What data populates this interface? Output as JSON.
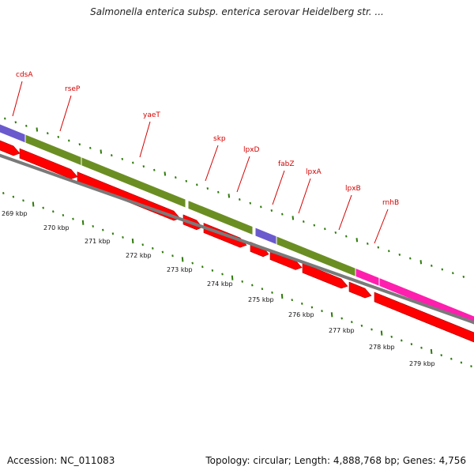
{
  "title": "Salmonella enterica subsp. enterica serovar Heidelberg str. ...",
  "footer": {
    "accession": "Accession: NC_011083",
    "summary": "Topology: circular; Length: 4,888,768 bp; Genes: 4,756"
  },
  "colors": {
    "gene_label": "#d40000",
    "cds_arrow": "#ff0000",
    "backbone": "#7a7a7a",
    "tick": "#2f7a0b",
    "cog_green": "#6b8e23",
    "cog_purple": "#6a5acd",
    "cog_magenta": "#ff1fae",
    "kbp_label": "#111111"
  },
  "gene_labels": [
    "cdsA",
    "rseP",
    "yaeT",
    "skp",
    "lpxD",
    "fabZ",
    "lpxA",
    "lpxB",
    "rnhB"
  ],
  "kbp_labels": [
    "269 kbp",
    "270 kbp",
    "271 kbp",
    "272 kbp",
    "273 kbp",
    "274 kbp",
    "275 kbp",
    "276 kbp",
    "277 kbp",
    "278 kbp",
    "279 kbp"
  ]
}
